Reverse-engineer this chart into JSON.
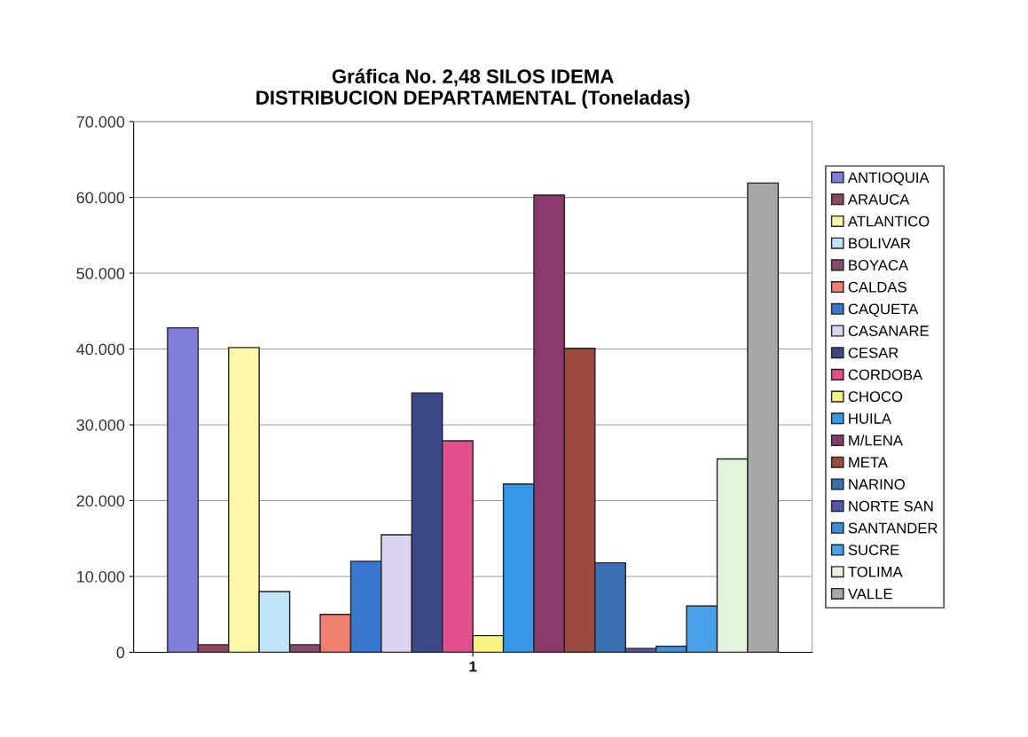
{
  "chart_data": {
    "type": "bar",
    "title": "Gráfica No. 2,48 SILOS IDEMA\nDISTRIBUCION DEPARTAMENTAL (Toneladas)",
    "categories": [
      "1"
    ],
    "series": [
      {
        "name": "ANTIOQUIA",
        "color": "#7f7fd8",
        "values": [
          42800
        ]
      },
      {
        "name": "ARAUCA",
        "color": "#8a4a5e",
        "values": [
          1000
        ]
      },
      {
        "name": "ATLANTICO",
        "color": "#fdf8a8",
        "values": [
          40200
        ]
      },
      {
        "name": "BOLIVAR",
        "color": "#bfe4f8",
        "values": [
          8000
        ]
      },
      {
        "name": "BOYACA",
        "color": "#8a4a6e",
        "values": [
          1000
        ]
      },
      {
        "name": "CALDAS",
        "color": "#f08070",
        "values": [
          5000
        ]
      },
      {
        "name": "CAQUETA",
        "color": "#3a78d0",
        "values": [
          12000
        ]
      },
      {
        "name": "CASANARE",
        "color": "#dcd4f0",
        "values": [
          15500
        ]
      },
      {
        "name": "CESAR",
        "color": "#3c4888",
        "values": [
          34200
        ]
      },
      {
        "name": "CORDOBA",
        "color": "#e0508a",
        "values": [
          27900
        ]
      },
      {
        "name": "CHOCO",
        "color": "#f8f484",
        "values": [
          2200
        ]
      },
      {
        "name": "HUILA",
        "color": "#3898e8",
        "values": [
          22200
        ]
      },
      {
        "name": "M/LENA",
        "color": "#8a3a6a",
        "values": [
          60300
        ]
      },
      {
        "name": "META",
        "color": "#9a4a40",
        "values": [
          40100
        ]
      },
      {
        "name": "NARINO",
        "color": "#3a70b0",
        "values": [
          11800
        ]
      },
      {
        "name": "NORTE SAN",
        "color": "#5058b0",
        "values": [
          500
        ]
      },
      {
        "name": "SANTANDER",
        "color": "#3890e0",
        "values": [
          800
        ]
      },
      {
        "name": "SUCRE",
        "color": "#48a0e8",
        "values": [
          6100
        ]
      },
      {
        "name": "TOLIMA",
        "color": "#e4f4dc",
        "values": [
          25500
        ]
      },
      {
        "name": "VALLE",
        "color": "#a8a8a8",
        "values": [
          61900
        ]
      }
    ],
    "ylim": [
      0,
      70000
    ],
    "yticks": [
      {
        "value": 0,
        "label": "0"
      },
      {
        "value": 10000,
        "label": "10.000"
      },
      {
        "value": 20000,
        "label": "20.000"
      },
      {
        "value": 30000,
        "label": "30.000"
      },
      {
        "value": 40000,
        "label": "40.000"
      },
      {
        "value": 50000,
        "label": "50.000"
      },
      {
        "value": 60000,
        "label": "60.000"
      },
      {
        "value": 70000,
        "label": "70.000"
      }
    ],
    "grid": "y",
    "legend": "right"
  }
}
